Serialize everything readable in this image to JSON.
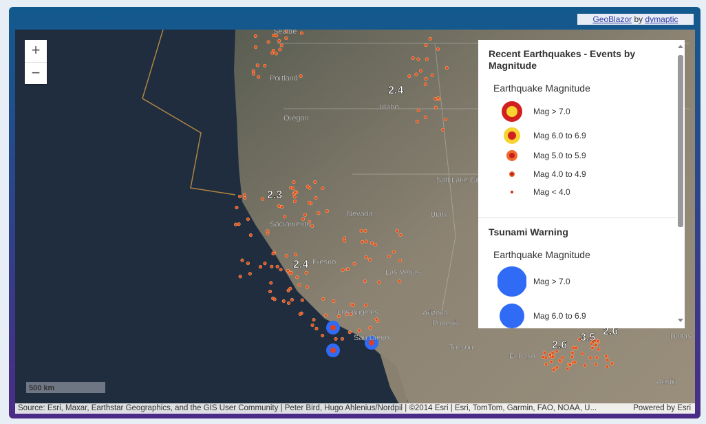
{
  "header": {
    "brand": "GeoBlazor",
    "by": "by",
    "author": "dymaptic"
  },
  "zoom": {
    "in": "+",
    "out": "−"
  },
  "legend": {
    "sections": [
      {
        "title": "Recent Earthquakes - Events by Magnitude",
        "subtitle": "Earthquake Magnitude",
        "items": [
          "Mag > 7.0",
          "Mag 6.0 to 6.9",
          "Mag 5.0 to 5.9",
          "Mag 4.0 to 4.9",
          "Mag < 4.0"
        ]
      },
      {
        "title": "Tsunami Warning",
        "subtitle": "Earthquake Magnitude",
        "items": [
          "Mag > 7.0",
          "Mag 6.0 to 6.9"
        ]
      }
    ]
  },
  "map": {
    "places": [
      "Seattle",
      "Portland",
      "Oregon",
      "Idaho",
      "Salt Lake City",
      "Sacramento",
      "Nevada",
      "Utah",
      "Fresno",
      "Las Vegas",
      "Los Angeles",
      "San Diego",
      "Arizona",
      "Phoenix",
      "Tucson",
      "El Paso",
      "Dallas",
      "Austin"
    ],
    "clusters": [
      2.4,
      2.3,
      2.4,
      2.6,
      3.5,
      2.6
    ],
    "scale": "500 km",
    "attribution": "Source: Esri, Maxar, Earthstar Geographics, and the GIS User Community | Peter Bird, Hugo Ahlenius/Nordpil | ©2014 Esri | Esri, TomTom, Garmin, FAO, NOAA, U...",
    "powered": "Powered by Esri"
  }
}
